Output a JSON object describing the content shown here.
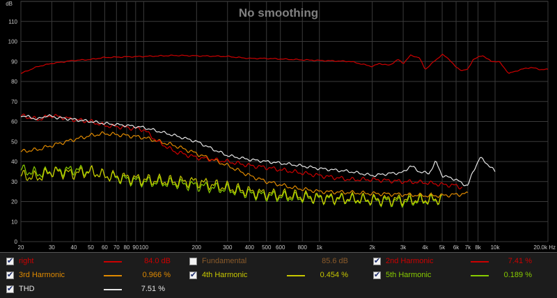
{
  "chart_data": {
    "type": "line",
    "title": "No smoothing",
    "y_unit": "dB",
    "x_scale": "log",
    "xlim": [
      20,
      20000
    ],
    "ylim": [
      0,
      120
    ],
    "grid": true,
    "y_ticks": [
      "0",
      "10",
      "20",
      "30",
      "40",
      "50",
      "60",
      "70",
      "80",
      "90",
      "100",
      "110"
    ],
    "x_ticks": [
      {
        "v": 20,
        "label": "20"
      },
      {
        "v": 30,
        "label": "30"
      },
      {
        "v": 40,
        "label": "40"
      },
      {
        "v": 50,
        "label": "50"
      },
      {
        "v": 60,
        "label": "60"
      },
      {
        "v": 70,
        "label": "70"
      },
      {
        "v": 80,
        "label": "80"
      },
      {
        "v": 90,
        "label": "90"
      },
      {
        "v": 100,
        "label": "100"
      },
      {
        "v": 200,
        "label": "200"
      },
      {
        "v": 300,
        "label": "300"
      },
      {
        "v": 400,
        "label": "400"
      },
      {
        "v": 500,
        "label": "500"
      },
      {
        "v": 600,
        "label": "600"
      },
      {
        "v": 800,
        "label": "800"
      },
      {
        "v": 1000,
        "label": "1k"
      },
      {
        "v": 2000,
        "label": "2k"
      },
      {
        "v": 3000,
        "label": "3k"
      },
      {
        "v": 4000,
        "label": "4k"
      },
      {
        "v": 5000,
        "label": "5k"
      },
      {
        "v": 6000,
        "label": "6k"
      },
      {
        "v": 7000,
        "label": "7k"
      },
      {
        "v": 8000,
        "label": "8k"
      },
      {
        "v": 10000,
        "label": "10k"
      },
      {
        "v": 20000,
        "label": "20.0k Hz"
      }
    ],
    "series": [
      {
        "name": "right",
        "color": "#cc0000",
        "jitter": 0.3,
        "points": [
          [
            20,
            84
          ],
          [
            25,
            87.5
          ],
          [
            30,
            89
          ],
          [
            40,
            90.5
          ],
          [
            50,
            91
          ],
          [
            60,
            92
          ],
          [
            80,
            92.3
          ],
          [
            100,
            92.5
          ],
          [
            150,
            93
          ],
          [
            200,
            92.8
          ],
          [
            300,
            92.5
          ],
          [
            400,
            91.5
          ],
          [
            500,
            91.5
          ],
          [
            700,
            91
          ],
          [
            1000,
            90.5
          ],
          [
            1500,
            90
          ],
          [
            2000,
            87.5
          ],
          [
            2200,
            89
          ],
          [
            2500,
            88
          ],
          [
            2800,
            91
          ],
          [
            3000,
            89
          ],
          [
            3300,
            93
          ],
          [
            3700,
            92
          ],
          [
            4000,
            86
          ],
          [
            4500,
            90
          ],
          [
            5000,
            93.5
          ],
          [
            5500,
            91
          ],
          [
            6000,
            87
          ],
          [
            6500,
            85.5
          ],
          [
            7000,
            86
          ],
          [
            7500,
            91
          ],
          [
            8500,
            93
          ],
          [
            9500,
            90
          ],
          [
            10500,
            90
          ],
          [
            12000,
            84
          ],
          [
            14000,
            86
          ],
          [
            16000,
            87
          ],
          [
            18000,
            86
          ],
          [
            20000,
            86
          ]
        ]
      },
      {
        "name": "THD",
        "color": "#e6e6e6",
        "jitter": 0.8,
        "points": [
          [
            20,
            63
          ],
          [
            23,
            62
          ],
          [
            25,
            61
          ],
          [
            28,
            63
          ],
          [
            32,
            62
          ],
          [
            40,
            61
          ],
          [
            50,
            60
          ],
          [
            60,
            59
          ],
          [
            80,
            58
          ],
          [
            100,
            57
          ],
          [
            150,
            53
          ],
          [
            200,
            50
          ],
          [
            250,
            46
          ],
          [
            300,
            43
          ],
          [
            400,
            41
          ],
          [
            500,
            40
          ],
          [
            700,
            38.5
          ],
          [
            1000,
            36.5
          ],
          [
            1500,
            35
          ],
          [
            2000,
            33
          ],
          [
            2500,
            34
          ],
          [
            3000,
            34.5
          ],
          [
            3300,
            38
          ],
          [
            3700,
            35
          ],
          [
            4200,
            34
          ],
          [
            4600,
            40
          ],
          [
            5000,
            33
          ],
          [
            5500,
            32
          ],
          [
            6000,
            31
          ],
          [
            6500,
            29
          ],
          [
            7000,
            28
          ],
          [
            7500,
            35
          ],
          [
            8200,
            42
          ],
          [
            9000,
            39
          ],
          [
            10000,
            35
          ]
        ]
      },
      {
        "name": "2nd Harmonic",
        "color": "#cc0000",
        "jitter": 1.2,
        "points": [
          [
            20,
            63
          ],
          [
            25,
            61
          ],
          [
            30,
            63
          ],
          [
            40,
            61
          ],
          [
            50,
            60
          ],
          [
            60,
            58
          ],
          [
            80,
            57
          ],
          [
            100,
            56
          ],
          [
            120,
            50
          ],
          [
            150,
            45
          ],
          [
            200,
            42
          ],
          [
            300,
            40
          ],
          [
            400,
            38
          ],
          [
            500,
            37
          ],
          [
            700,
            35
          ],
          [
            1000,
            33
          ],
          [
            1500,
            31
          ],
          [
            2000,
            31
          ],
          [
            3000,
            30
          ],
          [
            4000,
            29.5
          ],
          [
            5000,
            28.5
          ],
          [
            6000,
            28
          ],
          [
            6500,
            27
          ]
        ]
      },
      {
        "name": "3rd Harmonic",
        "color": "#e08a00",
        "jitter": 1.1,
        "points": [
          [
            20,
            45
          ],
          [
            25,
            46
          ],
          [
            30,
            48
          ],
          [
            40,
            51
          ],
          [
            50,
            53
          ],
          [
            60,
            54
          ],
          [
            80,
            53
          ],
          [
            100,
            52
          ],
          [
            150,
            48
          ],
          [
            200,
            44
          ],
          [
            300,
            38
          ],
          [
            400,
            33
          ],
          [
            500,
            30
          ],
          [
            700,
            27
          ],
          [
            1000,
            25
          ],
          [
            1500,
            24.5
          ],
          [
            2000,
            24
          ],
          [
            3000,
            23.5
          ],
          [
            4000,
            23
          ],
          [
            5000,
            23
          ],
          [
            6000,
            23.5
          ],
          [
            7000,
            24
          ]
        ]
      },
      {
        "name": "4th Harmonic",
        "color": "#c8c800",
        "jitter": 3.2,
        "points": [
          [
            20,
            33
          ],
          [
            25,
            32
          ],
          [
            30,
            35
          ],
          [
            40,
            34
          ],
          [
            50,
            35
          ],
          [
            60,
            33
          ],
          [
            80,
            32
          ],
          [
            100,
            31
          ],
          [
            150,
            30
          ],
          [
            200,
            30
          ],
          [
            300,
            27
          ],
          [
            400,
            25
          ],
          [
            500,
            24
          ],
          [
            700,
            23
          ],
          [
            1000,
            22
          ],
          [
            1500,
            21.5
          ],
          [
            2000,
            21
          ],
          [
            3000,
            21
          ],
          [
            4000,
            21
          ],
          [
            5000,
            21.5
          ]
        ]
      },
      {
        "name": "5th Harmonic",
        "color": "#88cc00",
        "jitter": 3.0,
        "points": [
          [
            20,
            36
          ],
          [
            25,
            34
          ],
          [
            30,
            35
          ],
          [
            40,
            36
          ],
          [
            50,
            35
          ],
          [
            60,
            33
          ],
          [
            80,
            31
          ],
          [
            100,
            30
          ],
          [
            150,
            29
          ],
          [
            200,
            28
          ],
          [
            300,
            26
          ],
          [
            400,
            24
          ],
          [
            500,
            23
          ],
          [
            700,
            22
          ],
          [
            1000,
            21.5
          ],
          [
            1500,
            21
          ],
          [
            2000,
            20.5
          ],
          [
            3000,
            20
          ],
          [
            4000,
            20.5
          ],
          [
            5000,
            21
          ]
        ]
      }
    ]
  },
  "legend": [
    {
      "name": "right",
      "value": "84.0 dB",
      "checked": true,
      "color": "#cc0000"
    },
    {
      "name": "Fundamental",
      "value": "85.6 dB",
      "checked": false,
      "color": "#8a5a2a"
    },
    {
      "name": "2nd Harmonic",
      "value": "7.41 %",
      "checked": true,
      "color": "#cc0000"
    },
    {
      "name": "3rd Harmonic",
      "value": "0.966 %",
      "checked": true,
      "color": "#e08a00"
    },
    {
      "name": "4th Harmonic",
      "value": "0.454 %",
      "checked": true,
      "color": "#c8c800"
    },
    {
      "name": "5th Harmonic",
      "value": "0.189 %",
      "checked": true,
      "color": "#88cc00"
    },
    {
      "name": "THD",
      "value": "7.51 %",
      "checked": true,
      "color": "#e6e6e6"
    }
  ]
}
